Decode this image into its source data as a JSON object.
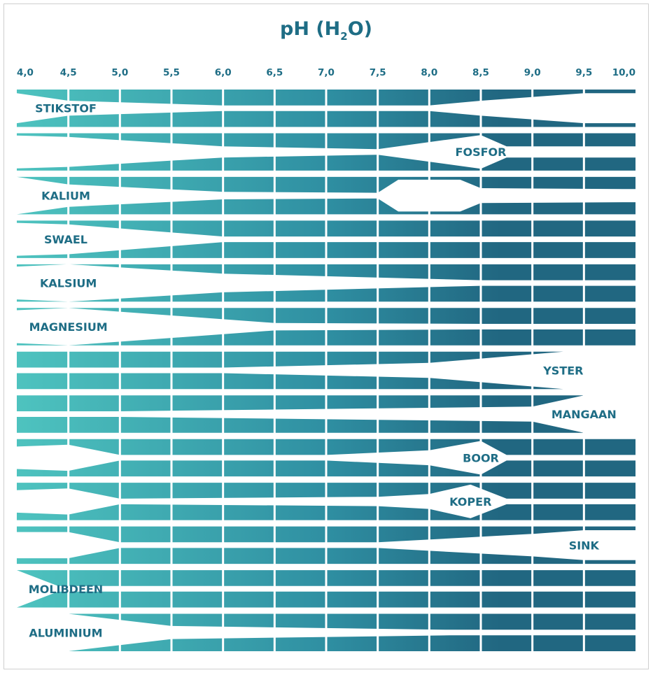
{
  "chart_data": {
    "type": "area",
    "title": {
      "prefix": "pH (H",
      "subscript": "2",
      "suffix": "O)"
    },
    "x": [
      4.0,
      4.5,
      5.0,
      5.5,
      6.0,
      6.5,
      7.0,
      7.5,
      8.0,
      8.5,
      9.0,
      9.5,
      10.0
    ],
    "tick_labels": [
      "4,0",
      "4,5",
      "5,0",
      "5,5",
      "6,0",
      "6,5",
      "7,0",
      "7,5",
      "8,0",
      "8,5",
      "9,0",
      "9,5",
      "10,0"
    ],
    "xlim": [
      4.0,
      10.0
    ],
    "colors": {
      "low_ph": "#4ec3bf",
      "mid_ph": "#2f8fa2",
      "high_ph": "#216781",
      "text": "#1e6d85"
    },
    "series": [
      {
        "name": "STIKSTOF",
        "label": "STIKSTOF",
        "x": [
          4.0,
          4.5,
          6.0,
          8.0,
          8.5,
          9.5,
          10.0
        ],
        "availability": [
          0.2,
          0.6,
          0.85,
          0.85,
          0.6,
          0.2,
          0.2
        ]
      },
      {
        "name": "FOSFOR",
        "label": "FOSFOR",
        "x": [
          4.0,
          4.5,
          6.0,
          7.5,
          8.5,
          8.75,
          10.0
        ],
        "availability": [
          0.12,
          0.2,
          0.7,
          0.85,
          0.1,
          0.7,
          0.7
        ]
      },
      {
        "name": "KALIUM",
        "label": "KALIUM",
        "x": [
          4.0,
          4.5,
          6.0,
          7.5,
          7.7,
          8.3,
          8.5,
          10.0
        ],
        "availability": [
          0.0,
          0.4,
          0.8,
          0.85,
          0.15,
          0.15,
          0.6,
          0.65
        ]
      },
      {
        "name": "SWAEL",
        "label": "SWAEL",
        "x": [
          4.0,
          4.5,
          6.0,
          10.0
        ],
        "availability": [
          0.12,
          0.2,
          0.85,
          0.85
        ]
      },
      {
        "name": "KALSIUM",
        "label": "KALSIUM",
        "x": [
          4.0,
          4.5,
          6.0,
          8.5,
          9.5,
          10.0
        ],
        "availability": [
          0.12,
          0.0,
          0.5,
          0.85,
          0.85,
          0.85
        ]
      },
      {
        "name": "MAGNESIUM",
        "label": "MAGNESIUM",
        "x": [
          4.0,
          4.5,
          6.5,
          8.5,
          10.0
        ],
        "availability": [
          0.12,
          0.0,
          0.8,
          0.85,
          0.85
        ]
      },
      {
        "name": "YSTER",
        "label": "YSTER",
        "x": [
          4.0,
          4.5,
          6.0,
          8.0,
          9.3,
          10.0
        ],
        "availability": [
          0.85,
          0.85,
          0.85,
          0.6,
          0.0,
          0.0
        ]
      },
      {
        "name": "MANGAAN",
        "label": "MANGAAN",
        "x": [
          4.0,
          4.5,
          5.0,
          9.0,
          9.5,
          10.0
        ],
        "availability": [
          0.85,
          0.85,
          0.85,
          0.6,
          0.0,
          0.0
        ]
      },
      {
        "name": "BOOR",
        "label": "BOOR",
        "x": [
          4.0,
          4.5,
          5.0,
          7.0,
          8.0,
          8.5,
          8.75,
          10.0
        ],
        "availability": [
          0.4,
          0.3,
          0.85,
          0.85,
          0.6,
          0.1,
          0.85,
          0.85
        ]
      },
      {
        "name": "KOPER",
        "label": "KOPER",
        "x": [
          4.0,
          4.5,
          5.0,
          7.5,
          8.0,
          8.4,
          8.75,
          10.0
        ],
        "availability": [
          0.4,
          0.3,
          0.85,
          0.75,
          0.6,
          0.1,
          0.85,
          0.85
        ]
      },
      {
        "name": "SINK",
        "label": "SINK",
        "x": [
          4.0,
          4.5,
          5.0,
          7.5,
          9.0,
          9.5,
          10.0
        ],
        "availability": [
          0.3,
          0.3,
          0.85,
          0.85,
          0.4,
          0.2,
          0.2
        ]
      },
      {
        "name": "MOLIBDEEN",
        "label": "MOLIBDEEN",
        "x": [
          4.0,
          4.4,
          10.0
        ],
        "availability": [
          0.0,
          0.85,
          0.85
        ]
      },
      {
        "name": "ALUMINIUM",
        "label": "ALUMINIUM",
        "x": [
          4.0,
          4.3,
          4.5,
          5.5,
          8.2,
          10.0
        ],
        "availability": [
          0.0,
          0.0,
          0.0,
          0.65,
          0.85,
          0.85
        ]
      }
    ]
  }
}
